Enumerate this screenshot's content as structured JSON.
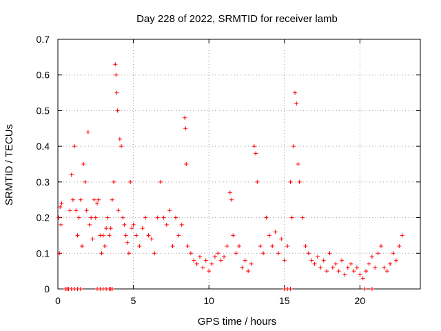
{
  "chart_data": {
    "type": "scatter",
    "title": "Day 228 of 2022, SRMTID for receiver lamb",
    "xlabel": "GPS time / hours",
    "ylabel": "SRMTID / TECUs",
    "xlim": [
      0,
      24
    ],
    "ylim": [
      0,
      0.7
    ],
    "xticks": [
      0,
      5,
      10,
      15,
      20
    ],
    "yticks": [
      0,
      0.1,
      0.2,
      0.3,
      0.4,
      0.5,
      0.6,
      0.7
    ],
    "xtick_labels": [
      "0",
      "5",
      "10",
      "15",
      "20"
    ],
    "ytick_labels": [
      "0",
      "0.1",
      "0.2",
      "0.3",
      "0.4",
      "0.5",
      "0.6",
      "0.7"
    ],
    "grid": true,
    "marker": "+",
    "color": "#ff0000",
    "series": [
      {
        "name": "SRMTID",
        "x": [
          0.05,
          0.1,
          0.15,
          0.2,
          0.25,
          0.5,
          0.6,
          0.7,
          0.8,
          0.9,
          1.0,
          1.1,
          1.2,
          1.3,
          1.4,
          1.5,
          1.6,
          1.7,
          1.8,
          1.9,
          2.0,
          2.1,
          2.2,
          2.3,
          2.4,
          2.5,
          2.6,
          2.7,
          2.8,
          2.9,
          3.0,
          3.1,
          3.2,
          3.3,
          3.4,
          3.5,
          3.6,
          3.7,
          3.8,
          3.85,
          3.9,
          3.95,
          4.0,
          4.1,
          4.2,
          4.3,
          4.4,
          4.5,
          4.6,
          4.7,
          4.8,
          4.9,
          5.0,
          5.2,
          5.4,
          5.6,
          5.8,
          6.0,
          6.2,
          6.4,
          6.6,
          6.8,
          7.0,
          7.2,
          7.4,
          7.6,
          7.8,
          8.0,
          8.2,
          8.4,
          8.45,
          8.5,
          8.6,
          8.8,
          9.0,
          9.2,
          9.4,
          9.6,
          9.8,
          10.0,
          10.2,
          10.4,
          10.6,
          10.8,
          11.0,
          11.2,
          11.4,
          11.5,
          11.6,
          11.8,
          12.0,
          12.2,
          12.4,
          12.6,
          12.8,
          13.0,
          13.1,
          13.2,
          13.4,
          13.6,
          13.8,
          14.0,
          14.2,
          14.4,
          14.6,
          14.8,
          15.0,
          15.2,
          15.4,
          15.5,
          15.6,
          15.7,
          15.8,
          15.9,
          16.0,
          16.2,
          16.4,
          16.6,
          16.8,
          17.0,
          17.2,
          17.4,
          17.6,
          17.8,
          18.0,
          18.2,
          18.4,
          18.6,
          18.8,
          19.0,
          19.2,
          19.4,
          19.6,
          19.8,
          20.0,
          20.2,
          20.4,
          20.6,
          20.8,
          21.0,
          21.2,
          21.4,
          21.6,
          21.8,
          22.0,
          22.2,
          22.4,
          22.6,
          22.8,
          0.5,
          0.7,
          0.9,
          1.1,
          1.3,
          1.5,
          2.6,
          2.8,
          3.0,
          3.2,
          3.4,
          3.5,
          3.6,
          15.0,
          15.2,
          15.4,
          20.3,
          20.8
        ],
        "y": [
          0.2,
          0.1,
          0.23,
          0.18,
          0.24,
          0.0,
          0.0,
          0.0,
          0.22,
          0.32,
          0.25,
          0.4,
          0.22,
          0.15,
          0.2,
          0.25,
          0.12,
          0.35,
          0.3,
          0.22,
          0.44,
          0.18,
          0.2,
          0.14,
          0.25,
          0.2,
          0.24,
          0.25,
          0.15,
          0.1,
          0.15,
          0.12,
          0.17,
          0.2,
          0.15,
          0.17,
          0.25,
          0.3,
          0.63,
          0.6,
          0.55,
          0.5,
          0.22,
          0.42,
          0.4,
          0.2,
          0.18,
          0.15,
          0.13,
          0.1,
          0.3,
          0.17,
          0.18,
          0.15,
          0.12,
          0.17,
          0.2,
          0.15,
          0.14,
          0.1,
          0.2,
          0.3,
          0.2,
          0.18,
          0.22,
          0.12,
          0.2,
          0.15,
          0.18,
          0.48,
          0.45,
          0.35,
          0.12,
          0.1,
          0.08,
          0.07,
          0.09,
          0.06,
          0.08,
          0.05,
          0.07,
          0.09,
          0.1,
          0.08,
          0.09,
          0.12,
          0.27,
          0.25,
          0.15,
          0.1,
          0.12,
          0.06,
          0.08,
          0.05,
          0.07,
          0.4,
          0.38,
          0.3,
          0.12,
          0.1,
          0.2,
          0.15,
          0.12,
          0.16,
          0.1,
          0.14,
          0.08,
          0.12,
          0.3,
          0.2,
          0.4,
          0.55,
          0.52,
          0.35,
          0.3,
          0.2,
          0.12,
          0.1,
          0.08,
          0.07,
          0.09,
          0.06,
          0.08,
          0.05,
          0.1,
          0.06,
          0.07,
          0.05,
          0.08,
          0.04,
          0.06,
          0.07,
          0.05,
          0.06,
          0.04,
          0.03,
          0.05,
          0.07,
          0.09,
          0.06,
          0.1,
          0.12,
          0.06,
          0.05,
          0.07,
          0.1,
          0.08,
          0.12,
          0.15,
          0.0,
          0.0,
          0.0,
          0.0,
          0.0,
          0.0,
          0.0,
          0.0,
          0.0,
          0.0,
          0.0,
          0.0,
          0.0,
          0.0,
          0.0,
          0.0,
          0.0,
          0.0
        ]
      }
    ]
  }
}
